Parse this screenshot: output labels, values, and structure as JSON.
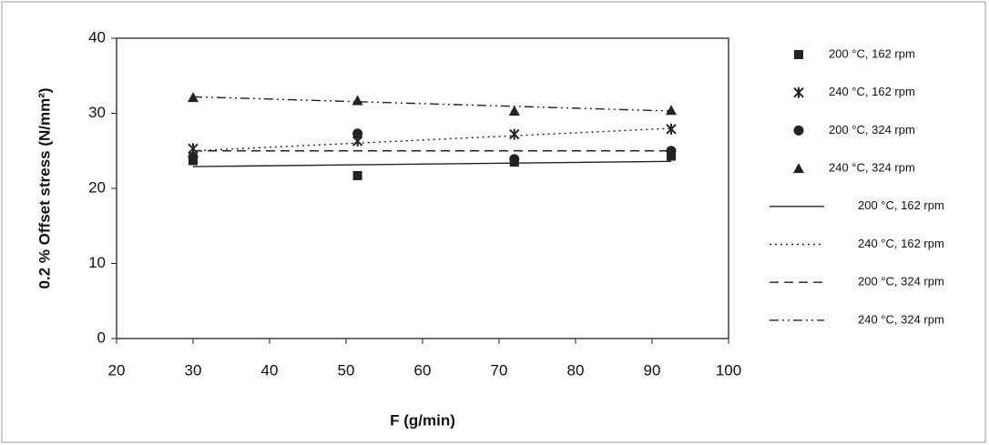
{
  "chart_data": {
    "type": "scatter",
    "x_label": "F (g/min)",
    "y_label": "0.2 % Offset stress (N/mm²)",
    "xlim": [
      20,
      100
    ],
    "xticks": [
      20,
      30,
      40,
      50,
      60,
      70,
      80,
      90,
      100
    ],
    "ylim": [
      0,
      40
    ],
    "yticks": [
      0,
      10,
      20,
      30,
      40
    ],
    "series": [
      {
        "name": "200 °C, 162 rpm",
        "color": "#222222",
        "marker": "square",
        "x": [
          30,
          51.5,
          72,
          92.5
        ],
        "values": [
          23.7,
          21.7,
          23.5,
          24.3
        ]
      },
      {
        "name": "240 °C, 162 rpm",
        "color": "#222222",
        "marker": "star",
        "x": [
          30,
          51.5,
          72,
          92.5
        ],
        "values": [
          25.3,
          26.3,
          27.2,
          27.9
        ]
      },
      {
        "name": "200 °C, 324 rpm",
        "color": "#222222",
        "marker": "circle",
        "x": [
          30,
          51.5,
          72,
          92.5
        ],
        "values": [
          24.2,
          27.3,
          23.9,
          25.0
        ]
      },
      {
        "name": "240 °C, 324 rpm",
        "color": "#222222",
        "marker": "triangle",
        "x": [
          30,
          51.5,
          72,
          92.5
        ],
        "values": [
          32.1,
          31.7,
          30.3,
          30.4
        ]
      }
    ],
    "trendlines": [
      {
        "name": "200 °C, 162 rpm",
        "color": "#222222",
        "dash": "solid",
        "x": [
          30,
          92.5
        ],
        "values": [
          22.9,
          23.6
        ]
      },
      {
        "name": "240 °C, 162 rpm",
        "color": "#222222",
        "dash": "dotted",
        "x": [
          30,
          92.5
        ],
        "values": [
          25.0,
          28.0
        ]
      },
      {
        "name": "200 °C, 324 rpm",
        "color": "#222222",
        "dash": "dashed",
        "x": [
          30,
          92.5
        ],
        "values": [
          25.0,
          25.0
        ]
      },
      {
        "name": "240 °C, 324 rpm",
        "color": "#222222",
        "dash": "dashdotdot",
        "x": [
          30,
          92.5
        ],
        "values": [
          32.2,
          30.3
        ]
      }
    ]
  }
}
